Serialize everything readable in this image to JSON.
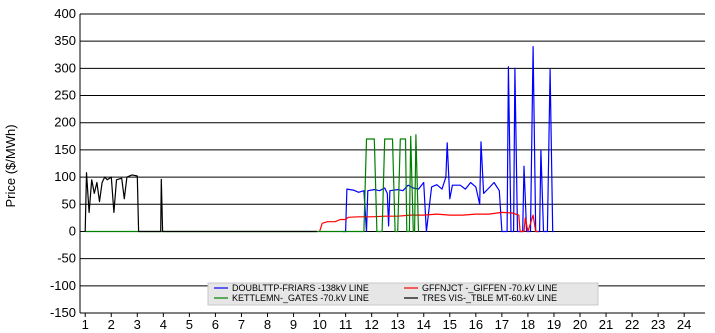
{
  "chart_data": {
    "type": "line",
    "title": "",
    "xlabel": "",
    "ylabel": "Price ($/MWh)",
    "xlim": [
      0.8,
      24.8
    ],
    "ylim": [
      -150,
      400
    ],
    "yticks": [
      -150,
      -100,
      -50,
      0,
      50,
      100,
      150,
      200,
      250,
      300,
      350,
      400
    ],
    "xticks": [
      1,
      2,
      3,
      4,
      5,
      6,
      7,
      8,
      9,
      10,
      11,
      12,
      13,
      14,
      15,
      16,
      17,
      18,
      19,
      20,
      21,
      22,
      23,
      24
    ],
    "grid": "horizontal",
    "legend_position": "bottom-center",
    "series": [
      {
        "name": "DOUBLTTP-FRIARS -138kV LINE",
        "color": "#0000ff",
        "points": [
          [
            10.9,
            0
          ],
          [
            11.0,
            0
          ],
          [
            11.05,
            78
          ],
          [
            11.3,
            76
          ],
          [
            11.5,
            72
          ],
          [
            11.7,
            75
          ],
          [
            11.8,
            0
          ],
          [
            11.85,
            75
          ],
          [
            12.1,
            77
          ],
          [
            12.3,
            75
          ],
          [
            12.5,
            80
          ],
          [
            12.6,
            70
          ],
          [
            12.65,
            10
          ],
          [
            12.7,
            75
          ],
          [
            13.0,
            77
          ],
          [
            13.2,
            75
          ],
          [
            13.4,
            85
          ],
          [
            13.6,
            80
          ],
          [
            13.8,
            78
          ],
          [
            14.0,
            90
          ],
          [
            14.1,
            0
          ],
          [
            14.3,
            82
          ],
          [
            14.5,
            86
          ],
          [
            14.7,
            78
          ],
          [
            14.85,
            100
          ],
          [
            14.9,
            163
          ],
          [
            15.0,
            60
          ],
          [
            15.1,
            85
          ],
          [
            15.4,
            85
          ],
          [
            15.6,
            78
          ],
          [
            15.8,
            90
          ],
          [
            16.0,
            82
          ],
          [
            16.15,
            50
          ],
          [
            16.2,
            165
          ],
          [
            16.3,
            70
          ],
          [
            16.5,
            80
          ],
          [
            16.7,
            90
          ],
          [
            16.9,
            75
          ],
          [
            17.0,
            0
          ],
          [
            17.2,
            0
          ],
          [
            17.25,
            303
          ],
          [
            17.35,
            0
          ],
          [
            17.45,
            0
          ],
          [
            17.5,
            300
          ],
          [
            17.6,
            0
          ],
          [
            17.7,
            0
          ],
          [
            17.8,
            0
          ],
          [
            17.85,
            120
          ],
          [
            17.95,
            0
          ],
          [
            18.0,
            0
          ],
          [
            18.1,
            0
          ],
          [
            18.2,
            340
          ],
          [
            18.3,
            0
          ],
          [
            18.45,
            0
          ],
          [
            18.5,
            150
          ],
          [
            18.6,
            0
          ],
          [
            18.75,
            0
          ],
          [
            18.85,
            298
          ],
          [
            18.95,
            0
          ],
          [
            19.0,
            0
          ]
        ]
      },
      {
        "name": "GFFNJCT -_GIFFEN -70.kV LINE",
        "color": "#ff0000",
        "points": [
          [
            10.0,
            0
          ],
          [
            10.1,
            15
          ],
          [
            10.3,
            18
          ],
          [
            10.6,
            18
          ],
          [
            10.8,
            22
          ],
          [
            11.0,
            22
          ],
          [
            11.1,
            26
          ],
          [
            11.5,
            27
          ],
          [
            12.0,
            27
          ],
          [
            12.5,
            28
          ],
          [
            13.0,
            28
          ],
          [
            13.5,
            30
          ],
          [
            14.0,
            30
          ],
          [
            14.5,
            32
          ],
          [
            15.0,
            30
          ],
          [
            15.5,
            30
          ],
          [
            16.0,
            32
          ],
          [
            16.5,
            32
          ],
          [
            17.0,
            35
          ],
          [
            17.4,
            34
          ],
          [
            17.65,
            30
          ],
          [
            17.7,
            0
          ],
          [
            17.85,
            0
          ],
          [
            17.9,
            25
          ],
          [
            18.0,
            0
          ],
          [
            18.2,
            30
          ],
          [
            18.3,
            0
          ],
          [
            18.4,
            0
          ]
        ]
      },
      {
        "name": "KETTLEMN-_GATES -70.kV LINE",
        "color": "#008000",
        "points": [
          [
            1.0,
            0
          ],
          [
            2.7,
            0
          ],
          [
            11.6,
            0
          ],
          [
            11.7,
            0
          ],
          [
            11.8,
            170
          ],
          [
            12.1,
            170
          ],
          [
            12.2,
            0
          ],
          [
            12.4,
            0
          ],
          [
            12.5,
            170
          ],
          [
            12.8,
            170
          ],
          [
            12.9,
            0
          ],
          [
            13.0,
            0
          ],
          [
            13.1,
            170
          ],
          [
            13.3,
            170
          ],
          [
            13.35,
            0
          ],
          [
            13.45,
            0
          ],
          [
            13.5,
            175
          ],
          [
            13.6,
            0
          ],
          [
            13.65,
            0
          ],
          [
            13.7,
            178
          ],
          [
            13.8,
            0
          ]
        ]
      },
      {
        "name": "TRES VIS-_TBLE MT-60.kV LINE",
        "color": "#000000",
        "points": [
          [
            1.0,
            0
          ],
          [
            1.05,
            108
          ],
          [
            1.15,
            35
          ],
          [
            1.25,
            95
          ],
          [
            1.35,
            70
          ],
          [
            1.45,
            90
          ],
          [
            1.55,
            55
          ],
          [
            1.65,
            90
          ],
          [
            1.75,
            100
          ],
          [
            1.85,
            95
          ],
          [
            2.0,
            100
          ],
          [
            2.1,
            35
          ],
          [
            2.2,
            95
          ],
          [
            2.4,
            98
          ],
          [
            2.5,
            60
          ],
          [
            2.6,
            100
          ],
          [
            2.8,
            104
          ],
          [
            3.0,
            102
          ],
          [
            3.05,
            0
          ],
          [
            3.9,
            0
          ],
          [
            3.92,
            96
          ],
          [
            3.97,
            0
          ],
          [
            9.9,
            0
          ]
        ]
      }
    ]
  }
}
